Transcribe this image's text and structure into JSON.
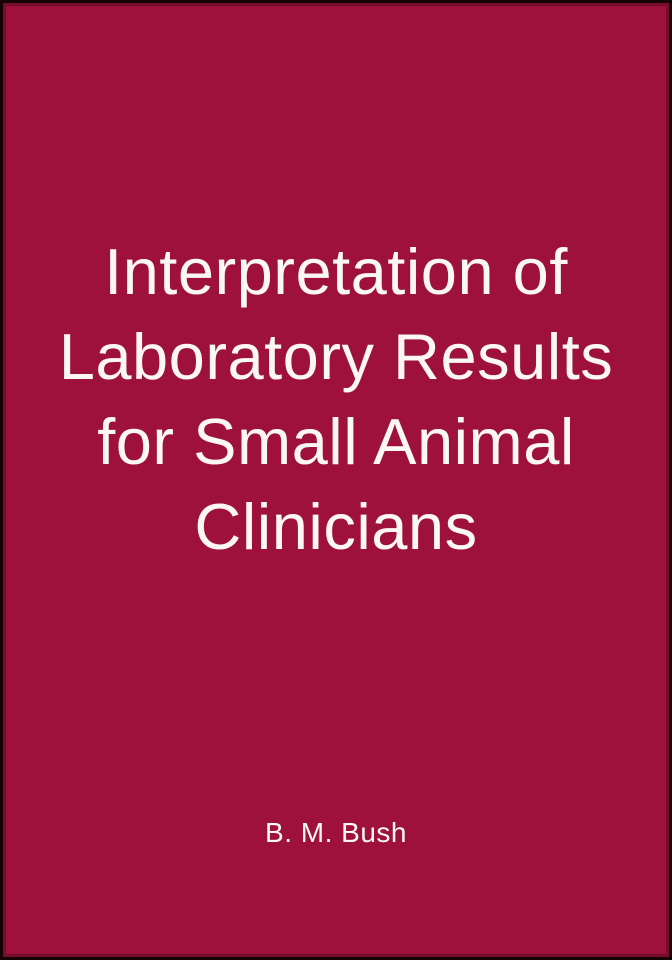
{
  "cover": {
    "title_lines": [
      "Interpretation of",
      "Laboratory Results",
      "for Small Animal",
      "Clinicians"
    ],
    "author": "B. M. Bush",
    "colors": {
      "background": "#9E113C",
      "border": "#150309",
      "text": "#FAF7F4"
    }
  }
}
